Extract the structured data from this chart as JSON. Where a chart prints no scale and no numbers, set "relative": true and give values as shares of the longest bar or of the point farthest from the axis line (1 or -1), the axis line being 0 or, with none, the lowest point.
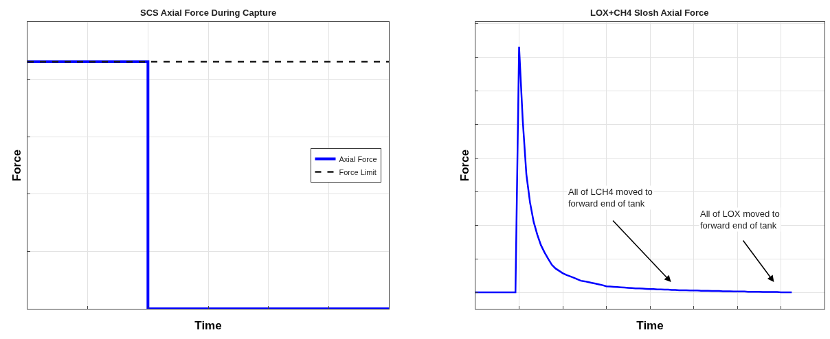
{
  "chart_data": [
    {
      "type": "step",
      "title": "SCS Axial Force During Capture",
      "xlabel": "Time",
      "ylabel": "Force",
      "relative": true,
      "grid": true,
      "legend": "right",
      "tick_labels": false,
      "categories": [
        null,
        null,
        null,
        null,
        null,
        null,
        null,
        null,
        null,
        null,
        null,
        null,
        null,
        null,
        null,
        null,
        null,
        null,
        null,
        null,
        null,
        null,
        null,
        null,
        null
      ],
      "series": [
        {
          "name": "Axial Force",
          "color": "#0000ff",
          "line_style": "solid",
          "values": [
            1,
            1,
            1,
            1,
            1,
            1,
            1,
            1,
            0,
            0,
            0,
            0,
            0,
            0,
            0,
            0,
            0,
            0,
            0,
            0,
            0,
            0,
            0,
            0,
            0
          ]
        },
        {
          "name": "Force Limit",
          "color": "#1a1a1a",
          "line_style": "dashed",
          "values": [
            1,
            1,
            1,
            1,
            1,
            1,
            1,
            1,
            1,
            1,
            1,
            1,
            1,
            1,
            1,
            1,
            1,
            1,
            1,
            1,
            1,
            1,
            1,
            1,
            1
          ]
        }
      ]
    },
    {
      "type": "line",
      "title": "LOX+CH4 Slosh Axial Force",
      "xlabel": "Time",
      "ylabel": "Force",
      "relative": true,
      "grid": true,
      "tick_labels": false,
      "annotations": [
        "All of LCH4 moved to forward end of tank",
        "All of LOX moved to forward end of tank"
      ],
      "categories": [
        null,
        null,
        null,
        null,
        null,
        null,
        null,
        null,
        null,
        null,
        null,
        null,
        null,
        null,
        null,
        null,
        null,
        null,
        null,
        null,
        null,
        null,
        null,
        null,
        null,
        null,
        null,
        null,
        null,
        null,
        null,
        null,
        null,
        null,
        null,
        null,
        null,
        null,
        null,
        null,
        null,
        null,
        null,
        null,
        null,
        null,
        null,
        null,
        null,
        null,
        null,
        null,
        null,
        null,
        null,
        null,
        null,
        null,
        null,
        null,
        null,
        null,
        null,
        null,
        null,
        null,
        null,
        null,
        null,
        null,
        null,
        null,
        null,
        null,
        null,
        null,
        null,
        null,
        null,
        null,
        null,
        null,
        null,
        null,
        null,
        null,
        null,
        null
      ],
      "series": [
        {
          "color": "#0000ff",
          "values": [
            0.063,
            0.063,
            0.063,
            0.063,
            0.063,
            0.063,
            0.063,
            0.063,
            0.063,
            0.063,
            0.063,
            0.063,
            1.0,
            0.72,
            0.513,
            0.406,
            0.332,
            0.283,
            0.243,
            0.215,
            0.191,
            0.168,
            0.154,
            0.145,
            0.136,
            0.129,
            0.124,
            0.119,
            0.113,
            0.107,
            0.105,
            0.102,
            0.099,
            0.096,
            0.093,
            0.09,
            0.086,
            0.085,
            0.084,
            0.083,
            0.082,
            0.081,
            0.08,
            0.079,
            0.078,
            0.078,
            0.077,
            0.076,
            0.075,
            0.075,
            0.074,
            0.074,
            0.073,
            0.073,
            0.072,
            0.072,
            0.071,
            0.071,
            0.071,
            0.07,
            0.07,
            0.07,
            0.069,
            0.069,
            0.069,
            0.068,
            0.068,
            0.068,
            0.067,
            0.067,
            0.067,
            0.066,
            0.066,
            0.066,
            0.066,
            0.065,
            0.065,
            0.065,
            0.065,
            0.064,
            0.064,
            0.064,
            0.064,
            0.064,
            0.063,
            0.063,
            0.063,
            0.063
          ]
        }
      ]
    }
  ]
}
